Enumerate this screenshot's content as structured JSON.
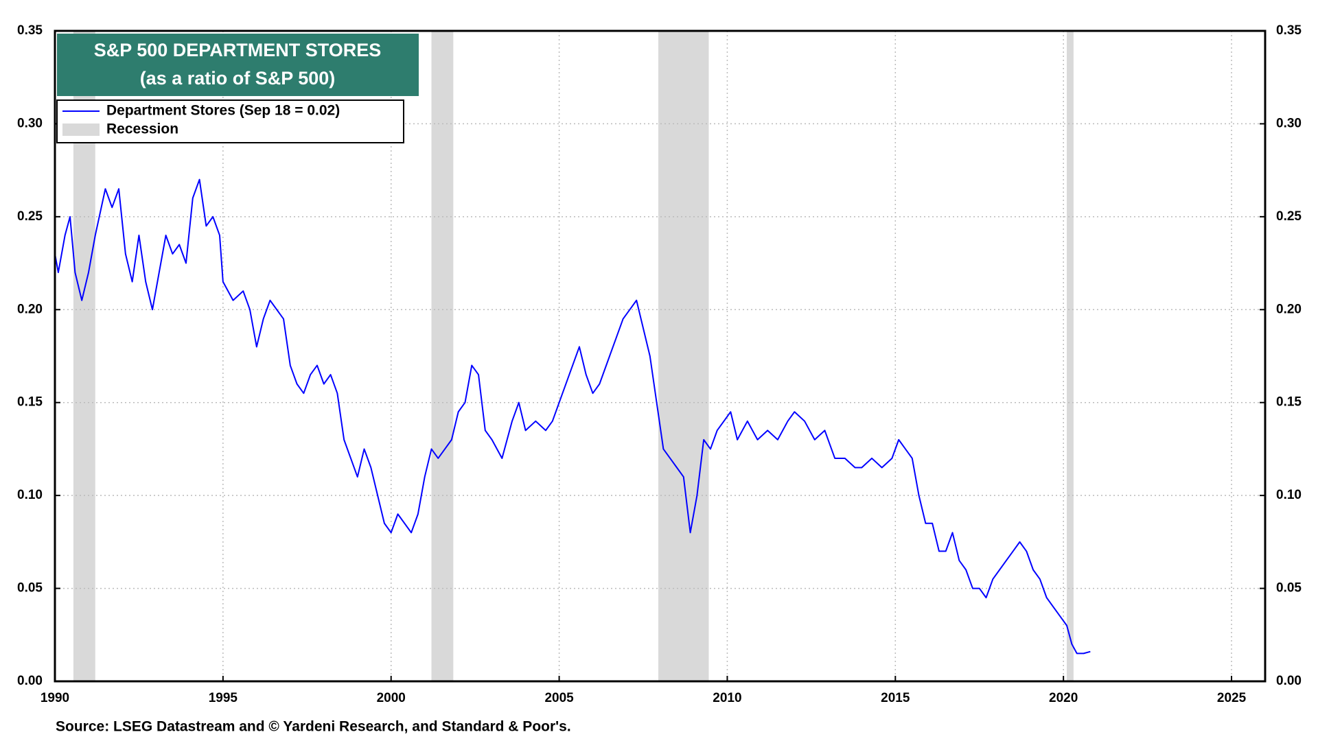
{
  "chart_data": {
    "type": "line",
    "title": "S&P 500 DEPARTMENT STORES",
    "subtitle": "(as a ratio of S&P 500)",
    "source": "Source: LSEG Datastream and © Yardeni Research, and Standard & Poor's.",
    "xlim": [
      1990,
      2026
    ],
    "xticks": [
      1990,
      1995,
      2000,
      2005,
      2010,
      2015,
      2020,
      2025
    ],
    "ylim": [
      0,
      0.35
    ],
    "yticks": [
      {
        "value": 0,
        "label": "0.00"
      },
      0.05,
      {
        "value": 0.1,
        "label": "0.10"
      },
      0.15,
      {
        "value": 0.2,
        "label": "0.20"
      },
      0.25,
      {
        "value": 0.3,
        "label": "0.30"
      },
      0.35
    ],
    "grid": true,
    "legend": "top-left",
    "recession_name": "Recession",
    "recession_color": "#d9d9d9",
    "recessions": [
      [
        1990.55,
        1991.2
      ],
      [
        2001.2,
        2001.85
      ],
      [
        2007.95,
        2009.45
      ],
      [
        2020.1,
        2020.3
      ]
    ],
    "series": [
      {
        "name": "Department Stores (Sep 18 = 0.02)",
        "color": "#0000ff",
        "x": [
          1990.0,
          1990.1,
          1990.3,
          1990.45,
          1990.6,
          1990.8,
          1991.0,
          1991.2,
          1991.5,
          1991.7,
          1991.9,
          1992.1,
          1992.3,
          1992.5,
          1992.7,
          1992.9,
          1993.1,
          1993.3,
          1993.5,
          1993.7,
          1993.9,
          1994.1,
          1994.3,
          1994.5,
          1994.7,
          1994.9,
          1995.0,
          1995.3,
          1995.6,
          1995.8,
          1996.0,
          1996.2,
          1996.4,
          1996.6,
          1996.8,
          1997.0,
          1997.2,
          1997.4,
          1997.6,
          1997.8,
          1998.0,
          1998.2,
          1998.4,
          1998.6,
          1998.8,
          1999.0,
          1999.2,
          1999.4,
          1999.6,
          1999.8,
          2000.0,
          2000.2,
          2000.4,
          2000.6,
          2000.8,
          2001.0,
          2001.2,
          2001.4,
          2001.6,
          2001.8,
          2002.0,
          2002.2,
          2002.4,
          2002.6,
          2002.8,
          2003.0,
          2003.3,
          2003.6,
          2003.8,
          2004.0,
          2004.3,
          2004.6,
          2004.8,
          2005.0,
          2005.3,
          2005.6,
          2005.8,
          2006.0,
          2006.2,
          2006.5,
          2006.7,
          2006.9,
          2007.1,
          2007.3,
          2007.5,
          2007.7,
          2007.9,
          2008.1,
          2008.3,
          2008.5,
          2008.7,
          2008.9,
          2009.1,
          2009.3,
          2009.5,
          2009.7,
          2009.9,
          2010.1,
          2010.3,
          2010.6,
          2010.9,
          2011.2,
          2011.5,
          2011.8,
          2012.0,
          2012.3,
          2012.6,
          2012.9,
          2013.2,
          2013.5,
          2013.8,
          2014.0,
          2014.3,
          2014.6,
          2014.9,
          2015.1,
          2015.3,
          2015.5,
          2015.7,
          2015.9,
          2016.1,
          2016.3,
          2016.5,
          2016.7,
          2016.9,
          2017.1,
          2017.3,
          2017.5,
          2017.7,
          2017.9,
          2018.1,
          2018.3,
          2018.5,
          2018.7,
          2018.9,
          2019.1,
          2019.3,
          2019.5,
          2019.7,
          2019.9,
          2020.1,
          2020.25,
          2020.4,
          2020.6,
          2020.8
        ],
        "values": [
          0.23,
          0.22,
          0.24,
          0.25,
          0.22,
          0.205,
          0.22,
          0.24,
          0.265,
          0.255,
          0.265,
          0.23,
          0.215,
          0.24,
          0.215,
          0.2,
          0.22,
          0.24,
          0.23,
          0.235,
          0.225,
          0.26,
          0.27,
          0.245,
          0.25,
          0.24,
          0.215,
          0.205,
          0.21,
          0.2,
          0.18,
          0.195,
          0.205,
          0.2,
          0.195,
          0.17,
          0.16,
          0.155,
          0.165,
          0.17,
          0.16,
          0.165,
          0.155,
          0.13,
          0.12,
          0.11,
          0.125,
          0.115,
          0.1,
          0.085,
          0.08,
          0.09,
          0.085,
          0.08,
          0.09,
          0.11,
          0.125,
          0.12,
          0.125,
          0.13,
          0.145,
          0.15,
          0.17,
          0.165,
          0.135,
          0.13,
          0.12,
          0.14,
          0.15,
          0.135,
          0.14,
          0.135,
          0.14,
          0.15,
          0.165,
          0.18,
          0.165,
          0.155,
          0.16,
          0.175,
          0.185,
          0.195,
          0.2,
          0.205,
          0.19,
          0.175,
          0.15,
          0.125,
          0.12,
          0.115,
          0.11,
          0.08,
          0.1,
          0.13,
          0.125,
          0.135,
          0.14,
          0.145,
          0.13,
          0.14,
          0.13,
          0.135,
          0.13,
          0.14,
          0.145,
          0.14,
          0.13,
          0.135,
          0.12,
          0.12,
          0.115,
          0.115,
          0.12,
          0.115,
          0.12,
          0.13,
          0.125,
          0.12,
          0.1,
          0.085,
          0.085,
          0.07,
          0.07,
          0.08,
          0.065,
          0.06,
          0.05,
          0.05,
          0.045,
          0.055,
          0.06,
          0.065,
          0.07,
          0.075,
          0.07,
          0.06,
          0.055,
          0.045,
          0.04,
          0.035,
          0.03,
          0.02,
          0.015,
          0.015,
          0.016
        ]
      }
    ]
  }
}
